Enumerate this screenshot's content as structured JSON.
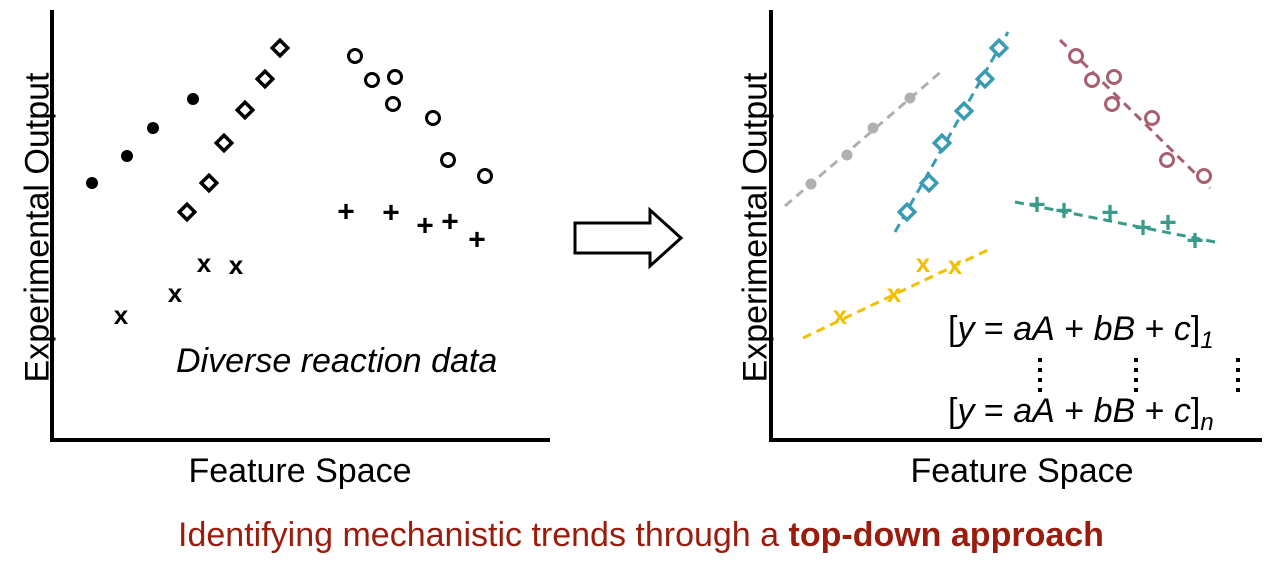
{
  "left_panel": {
    "ylabel": "Experimental Output",
    "xlabel": "Feature Space",
    "note": "Diverse reaction data",
    "x_marker_label": "x",
    "plus_marker_label": "+"
  },
  "arrow": {
    "icon": "right-arrow-icon"
  },
  "right_panel": {
    "ylabel": "Experimental Output",
    "xlabel": "Feature Space",
    "x_marker_label": "x",
    "plus_marker_label": "+",
    "series_colors": {
      "dots": "#b0b0b0",
      "diamonds": "#3a9bb5",
      "circles": "#a86070",
      "plus": "#3a9b8a",
      "x": "#f2c000"
    },
    "equation_1": {
      "open": "[",
      "y": "y",
      "eq": " = ",
      "a": "a",
      "A": "A",
      "plus1": " + ",
      "b": "b",
      "B": "B",
      "plus2": " + ",
      "c": "c",
      "close": "]",
      "sub": "1"
    },
    "equation_n": {
      "open": "[",
      "y": "y",
      "eq": " = ",
      "a": "a",
      "A": "A",
      "plus1": " + ",
      "b": "b",
      "B": "B",
      "plus2": " + ",
      "c": "c",
      "close": "]",
      "sub": "n"
    }
  },
  "caption": {
    "normal": "Identifying mechanistic trends through a ",
    "bold": "top-down approach"
  }
}
